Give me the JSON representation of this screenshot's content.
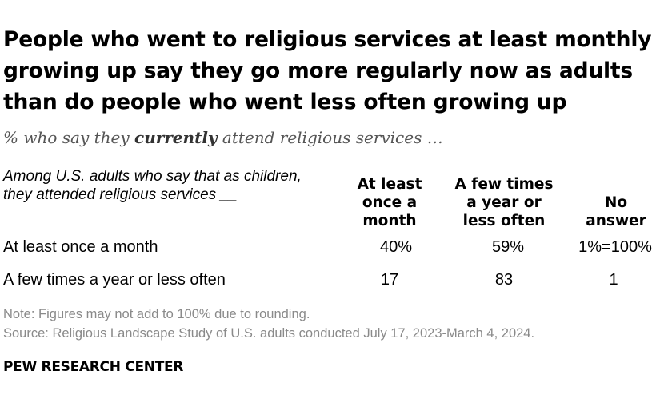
{
  "chart_data": {
    "type": "table",
    "title": "People who went to religious services at least monthly growing up say they go more regularly now as adults than do people who went less often growing up",
    "subtitle_parts": [
      "% who say they ",
      "currently",
      " attend religious services …"
    ],
    "row_header": "Among U.S. adults who say that as children, they attended religious services __",
    "columns": [
      "At least once a month",
      "A few times a year or less often",
      "No answer"
    ],
    "rows": [
      {
        "label": "At least once a month",
        "values": [
          "40%",
          "59%",
          "1%=100%"
        ]
      },
      {
        "label": "A few times a year or less often",
        "values": [
          "17",
          "83",
          "1"
        ]
      }
    ]
  },
  "note": "Note: Figures may not add to 100% due to rounding.",
  "source": "Source: Religious Landscape Study of U.S. adults conducted July 17, 2023-March 4, 2024.",
  "brand": "PEW RESEARCH CENTER"
}
